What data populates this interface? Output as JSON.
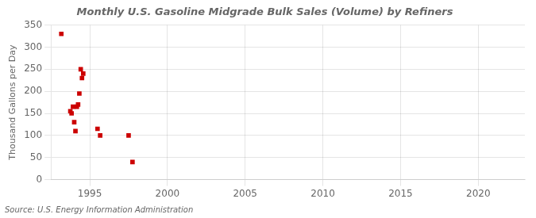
{
  "chart_data": {
    "type": "scatter",
    "title": "Monthly U.S. Gasoline Midgrade Bulk Sales (Volume) by Refiners",
    "y_label": "Thousand Gallons per Day",
    "annotations": [
      "Source: U.S. Energy Information Administration"
    ],
    "x": [
      1993.17,
      1993.75,
      1993.83,
      1993.92,
      1994.0,
      1994.08,
      1994.17,
      1994.25,
      1994.33,
      1994.42,
      1994.5,
      1994.58,
      1995.5,
      1995.67,
      1997.5,
      1997.75
    ],
    "values": [
      330,
      155,
      150,
      165,
      130,
      110,
      165,
      170,
      195,
      250,
      230,
      240,
      115,
      100,
      100,
      40
    ],
    "color": "#cc0000",
    "marker": "square",
    "xlim": [
      1992.5,
      2023
    ],
    "ylim": [
      0,
      350
    ],
    "xticks": [
      1995,
      2000,
      2005,
      2010,
      2015,
      2020
    ],
    "yticks": [
      0,
      50,
      100,
      150,
      200,
      250,
      300,
      350
    ],
    "grid": true
  }
}
